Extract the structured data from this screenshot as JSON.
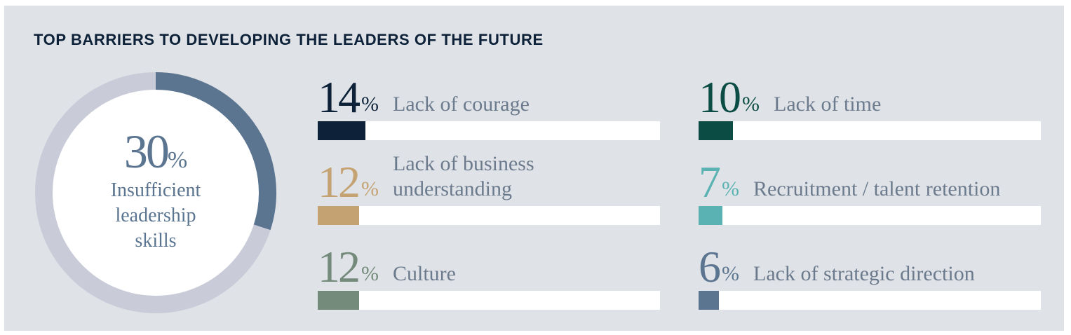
{
  "chart_data": [
    {
      "type": "donut",
      "title": "TOP BARRIERS TO DEVELOPING THE LEADERS OF THE FUTURE",
      "categories": [
        "Insufficient leadership skills"
      ],
      "values": [
        30
      ],
      "unit": "%",
      "color": "#5b7590",
      "track_color": "#c9ccd8",
      "ylim": [
        0,
        100
      ]
    },
    {
      "type": "bar",
      "categories": [
        "Lack of courage",
        "Lack of business understanding",
        "Culture",
        "Lack of time",
        "Recruitment / talent retention",
        "Lack of strategic direction"
      ],
      "values": [
        14,
        12,
        12,
        10,
        7,
        6
      ],
      "unit": "%",
      "colors": [
        "#0d2239",
        "#c4a272",
        "#748a7a",
        "#0b4d44",
        "#5ab3b2",
        "#5b7590"
      ],
      "xlim": [
        0,
        100
      ]
    }
  ]
}
